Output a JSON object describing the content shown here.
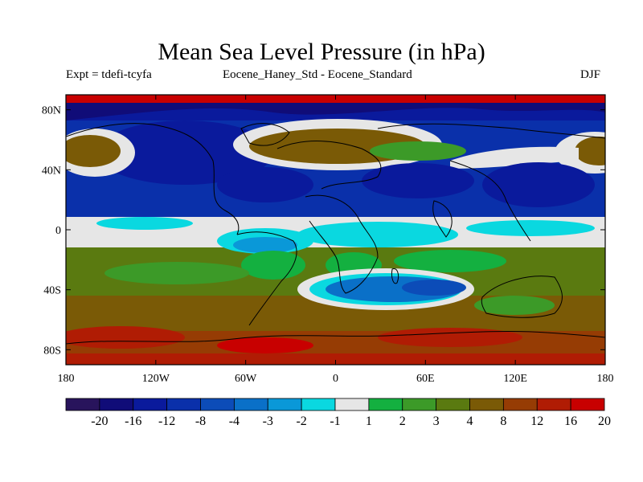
{
  "header": {
    "title": "Mean Sea Level Pressure (in hPa)",
    "experiment": "Expt = tdefi-tcyfa",
    "comparison": "Eocene_Haney_Std - Eocene_Standard",
    "season": "DJF"
  },
  "map": {
    "projection": "cylindrical-equidistant",
    "lon_range": [
      -180,
      180
    ],
    "lat_range": [
      -90,
      90
    ],
    "x_ticks": [
      {
        "lon": -180,
        "label": "180"
      },
      {
        "lon": -120,
        "label": "120W"
      },
      {
        "lon": -60,
        "label": "60W"
      },
      {
        "lon": 0,
        "label": "0"
      },
      {
        "lon": 60,
        "label": "60E"
      },
      {
        "lon": 120,
        "label": "120E"
      },
      {
        "lon": 180,
        "label": "180"
      }
    ],
    "y_ticks": [
      {
        "lat": 80,
        "label": "80N"
      },
      {
        "lat": 40,
        "label": "40N"
      },
      {
        "lat": 0,
        "label": "0"
      },
      {
        "lat": -40,
        "label": "40S"
      },
      {
        "lat": -80,
        "label": "80S"
      }
    ]
  },
  "colorbar": {
    "colors": [
      "#28145c",
      "#100c78",
      "#0a1a9c",
      "#0a30aa",
      "#0c4cb8",
      "#0a70c8",
      "#0a98d8",
      "#0ad8e0",
      "#e6e6e6",
      "#14b040",
      "#3c9a28",
      "#5a7a10",
      "#7a5a06",
      "#963c04",
      "#b01c04",
      "#c80000"
    ],
    "labels": [
      "-20",
      "-16",
      "-12",
      "-8",
      "-4",
      "-3",
      "-2",
      "-1",
      "1",
      "2",
      "3",
      "4",
      "8",
      "12",
      "16",
      "20"
    ]
  }
}
